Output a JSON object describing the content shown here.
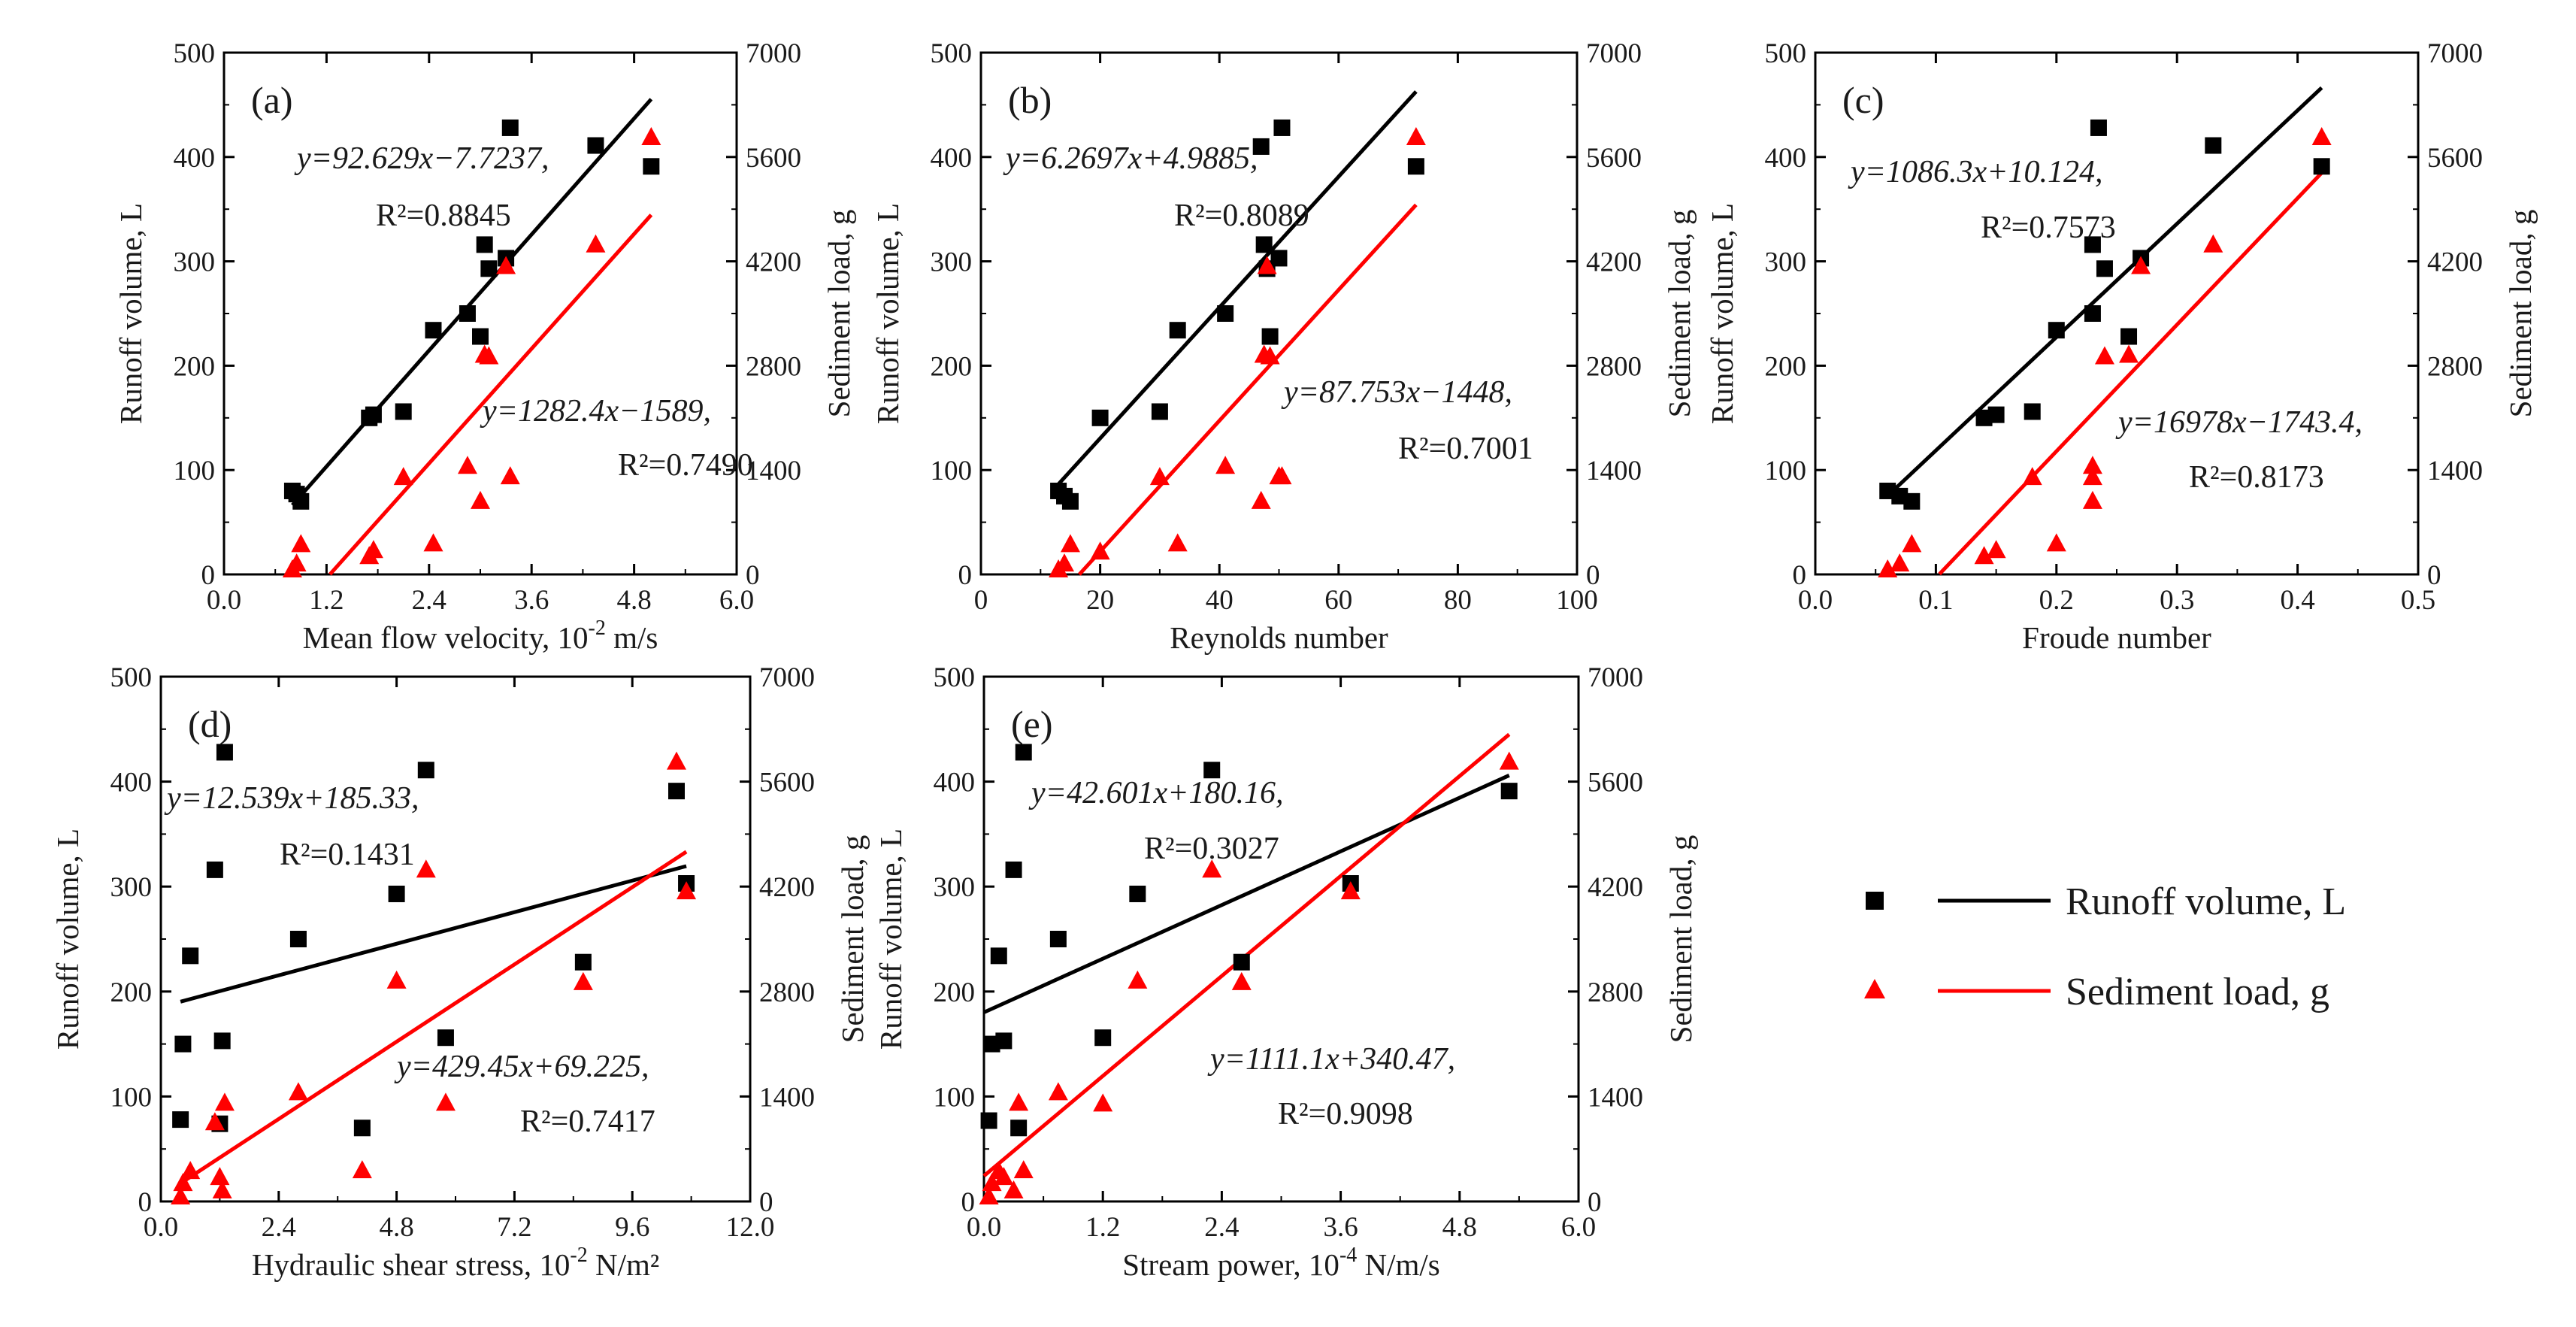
{
  "legend": {
    "runoff_label": "Runoff volume, L",
    "sediment_label": "Sediment load, g",
    "runoff_color": "#000000",
    "sediment_color": "#ff0000",
    "position": "right"
  },
  "chart_data": [
    {
      "type": "scatter",
      "panel": "(a)",
      "xlabel": "Mean flow velocity, 10",
      "xlabel_sup": "-2",
      "xlabel_tail": " m/s",
      "ylabel": "Runoff volume, L",
      "y2label": "Sediment load, g",
      "xlim": [
        0.0,
        6.0
      ],
      "xticks": [
        0.0,
        1.2,
        2.4,
        3.6,
        4.8,
        6.0
      ],
      "xdec": 1,
      "ylim": [
        0,
        500
      ],
      "yticks": [
        0,
        100,
        200,
        300,
        400,
        500
      ],
      "y2lim": [
        0,
        7000
      ],
      "y2ticks": [
        0,
        1400,
        2800,
        4200,
        5600,
        7000
      ],
      "runoff": {
        "x": [
          0.8,
          0.85,
          0.9,
          1.7,
          1.75,
          2.1,
          2.45,
          2.85,
          3.0,
          3.05,
          3.1,
          3.3,
          3.35,
          4.35,
          5.0
        ],
        "y": [
          80,
          77,
          70,
          150,
          153,
          156,
          234,
          250,
          228,
          316,
          293,
          303,
          428,
          411,
          391
        ]
      },
      "sediment": {
        "x": [
          0.8,
          0.85,
          0.9,
          1.7,
          1.75,
          2.1,
          2.45,
          2.85,
          3.0,
          3.05,
          3.1,
          3.3,
          3.35,
          4.35,
          5.0
        ],
        "y": [
          60,
          140,
          400,
          240,
          320,
          1300,
          410,
          1450,
          980,
          2940,
          2920,
          4130,
          1310,
          4420,
          5860
        ]
      },
      "runoff_fit": {
        "equation": "y=92.629x−7.7237,",
        "r2": "R²=0.8845",
        "slope": 92.629,
        "intercept": -7.7237,
        "x_range": [
          0.8,
          5.0
        ]
      },
      "sediment_fit": {
        "equation": "y=1282.4x−1589,",
        "r2": "R²=0.7490",
        "slope": 1282.4,
        "intercept": -1589,
        "x_range": [
          1.24,
          5.0
        ]
      }
    },
    {
      "type": "scatter",
      "panel": "(b)",
      "xlabel": "Reynolds number",
      "xlabel_sup": "",
      "xlabel_tail": "",
      "ylabel": "Runoff volume, L",
      "y2label": "Sediment load, g",
      "xlim": [
        0,
        100
      ],
      "xticks": [
        0,
        20,
        40,
        60,
        80,
        100
      ],
      "xdec": 0,
      "ylim": [
        0,
        500
      ],
      "yticks": [
        0,
        100,
        200,
        300,
        400,
        500
      ],
      "y2lim": [
        0,
        7000
      ],
      "y2ticks": [
        0,
        1400,
        2800,
        4200,
        5600,
        7000
      ],
      "runoff": {
        "x": [
          13,
          14,
          15,
          20,
          30,
          33,
          41,
          47,
          47.5,
          48,
          48.5,
          50,
          50.5,
          73
        ],
        "y": [
          80,
          75,
          70,
          150,
          156,
          234,
          250,
          410,
          316,
          293,
          228,
          303,
          428,
          391
        ]
      },
      "sediment": {
        "x": [
          13,
          14,
          15,
          20,
          30,
          33,
          41,
          47,
          47.5,
          48,
          48.5,
          50,
          50.5,
          73
        ],
        "y": [
          60,
          140,
          400,
          300,
          1300,
          410,
          1450,
          980,
          2940,
          4130,
          2920,
          1310,
          1310,
          5860
        ]
      },
      "runoff_fit": {
        "equation": "y=6.2697x+4.9885,",
        "r2": "R²=0.8089",
        "slope": 6.2697,
        "intercept": 4.9885,
        "x_range": [
          12,
          73
        ]
      },
      "sediment_fit": {
        "equation": "y=87.753x−1448,",
        "r2": "R²=0.7001",
        "slope": 87.753,
        "intercept": -1448,
        "x_range": [
          16.5,
          73
        ]
      }
    },
    {
      "type": "scatter",
      "panel": "(c)",
      "xlabel": "Froude number",
      "xlabel_sup": "",
      "xlabel_tail": "",
      "ylabel": "Runoff volume, L",
      "y2label": "Sediment load, g",
      "xlim": [
        0.0,
        0.5
      ],
      "xticks": [
        0.0,
        0.1,
        0.2,
        0.3,
        0.4,
        0.5
      ],
      "xdec": 1,
      "ylim": [
        0,
        500
      ],
      "yticks": [
        0,
        100,
        200,
        300,
        400,
        500
      ],
      "y2lim": [
        0,
        7000
      ],
      "y2ticks": [
        0,
        1400,
        2800,
        4200,
        5600,
        7000
      ],
      "runoff": {
        "x": [
          0.06,
          0.07,
          0.08,
          0.14,
          0.15,
          0.18,
          0.2,
          0.23,
          0.23,
          0.235,
          0.24,
          0.26,
          0.27,
          0.33,
          0.42
        ],
        "y": [
          80,
          75,
          70,
          150,
          153,
          156,
          234,
          250,
          316,
          428,
          293,
          228,
          303,
          411,
          391
        ]
      },
      "sediment": {
        "x": [
          0.06,
          0.07,
          0.08,
          0.14,
          0.15,
          0.18,
          0.2,
          0.23,
          0.23,
          0.23,
          0.24,
          0.26,
          0.27,
          0.33,
          0.42
        ],
        "y": [
          60,
          140,
          400,
          240,
          320,
          1300,
          410,
          980,
          1300,
          1450,
          2920,
          2940,
          4130,
          4420,
          5860
        ]
      },
      "runoff_fit": {
        "equation": "y=1086.3x+10.124,",
        "r2": "R²=0.7573",
        "slope": 1086.3,
        "intercept": 10.124,
        "x_range": [
          0.06,
          0.42
        ]
      },
      "sediment_fit": {
        "equation": "y=16978x−1743.4,",
        "r2": "R²=0.8173",
        "slope": 16978,
        "intercept": -1743.4,
        "x_range": [
          0.103,
          0.42
        ]
      }
    },
    {
      "type": "scatter",
      "panel": "(d)",
      "xlabel": "Hydraulic shear stress, 10",
      "xlabel_sup": "-2",
      "xlabel_tail": " N/m²",
      "ylabel": "Runoff volume, L",
      "y2label": "Sediment load, g",
      "xlim": [
        0.0,
        12.0
      ],
      "xticks": [
        0.0,
        2.4,
        4.8,
        7.2,
        9.6,
        12.0
      ],
      "xdec": 1,
      "ylim": [
        0,
        500
      ],
      "yticks": [
        0,
        100,
        200,
        300,
        400,
        500
      ],
      "y2lim": [
        0,
        7000
      ],
      "y2ticks": [
        0,
        1400,
        2800,
        4200,
        5600,
        7000
      ],
      "runoff": {
        "x": [
          0.4,
          0.45,
          0.6,
          1.1,
          1.2,
          1.25,
          1.3,
          2.8,
          4.1,
          4.8,
          5.4,
          5.8,
          8.6,
          10.5,
          10.7
        ],
        "y": [
          78,
          150,
          234,
          316,
          74,
          153,
          428,
          250,
          70,
          293,
          411,
          156,
          228,
          391,
          303
        ]
      },
      "sediment": {
        "x": [
          0.4,
          0.45,
          0.6,
          1.1,
          1.2,
          1.25,
          1.3,
          2.8,
          4.1,
          4.8,
          5.4,
          5.8,
          8.6,
          10.5,
          10.7
        ],
        "y": [
          60,
          240,
          400,
          1050,
          320,
          140,
          1310,
          1450,
          410,
          2940,
          4420,
          1310,
          2920,
          5860,
          4130
        ]
      },
      "runoff_fit": {
        "equation": "y=12.539x+185.33,",
        "r2": "R²=0.1431",
        "slope": 12.539,
        "intercept": 185.33,
        "x_range": [
          0.4,
          10.7
        ]
      },
      "sediment_fit": {
        "equation": "y=429.45x+69.225,",
        "r2": "R²=0.7417",
        "slope": 429.45,
        "intercept": 69.225,
        "x_range": [
          0.4,
          10.7
        ]
      }
    },
    {
      "type": "scatter",
      "panel": "(e)",
      "xlabel": "Stream power, 10",
      "xlabel_sup": "-4",
      "xlabel_tail": " N/m/s",
      "ylabel": "Runoff volume, L",
      "y2label": "Sediment load, g",
      "xlim": [
        0.0,
        6.0
      ],
      "xticks": [
        0.0,
        1.2,
        2.4,
        3.6,
        4.8,
        6.0
      ],
      "xdec": 1,
      "ylim": [
        0,
        500
      ],
      "yticks": [
        0,
        100,
        200,
        300,
        400,
        500
      ],
      "y2lim": [
        0,
        7000
      ],
      "y2ticks": [
        0,
        1400,
        2800,
        4200,
        5600,
        7000
      ],
      "runoff": {
        "x": [
          0.05,
          0.08,
          0.15,
          0.2,
          0.3,
          0.35,
          0.4,
          0.75,
          1.2,
          1.55,
          2.3,
          2.6,
          3.7,
          5.3
        ],
        "y": [
          77,
          150,
          234,
          153,
          316,
          70,
          428,
          250,
          156,
          293,
          411,
          228,
          303,
          391
        ]
      },
      "sediment": {
        "x": [
          0.05,
          0.08,
          0.15,
          0.2,
          0.3,
          0.35,
          0.4,
          0.75,
          1.2,
          1.55,
          2.3,
          2.6,
          3.7,
          5.3
        ],
        "y": [
          60,
          240,
          400,
          320,
          140,
          1310,
          410,
          1450,
          1300,
          2940,
          4420,
          2920,
          4130,
          5860
        ]
      },
      "runoff_fit": {
        "equation": "y=42.601x+180.16,",
        "r2": "R²=0.3027",
        "slope": 42.601,
        "intercept": 180.16,
        "x_range": [
          0.0,
          5.3
        ]
      },
      "sediment_fit": {
        "equation": "y=1111.1x+340.47,",
        "r2": "R²=0.9098",
        "slope": 1111.1,
        "intercept": 340.47,
        "x_range": [
          0.0,
          5.3
        ]
      }
    }
  ]
}
